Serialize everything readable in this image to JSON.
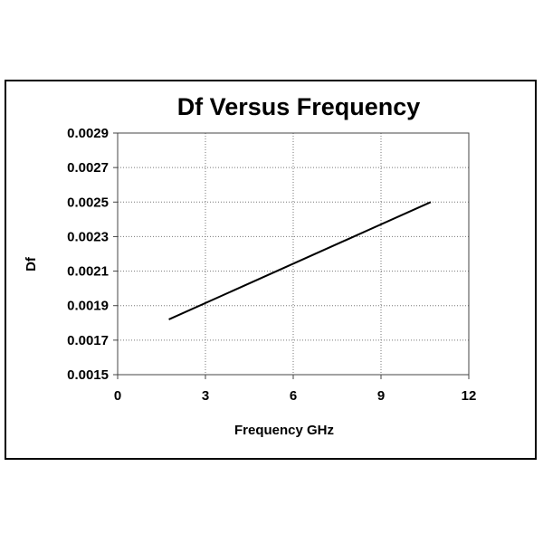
{
  "chart_data": {
    "type": "line",
    "title": "Df Versus Frequency",
    "xlabel": "Frequency GHz",
    "ylabel": "Df",
    "xlim": [
      0,
      12
    ],
    "ylim": [
      0.0015,
      0.0029
    ],
    "x_ticks": [
      "0",
      "3",
      "6",
      "9",
      "12"
    ],
    "x_tick_values": [
      0,
      3,
      6,
      9,
      12
    ],
    "y_ticks": [
      "0.0015",
      "0.0017",
      "0.0019",
      "0.0021",
      "0.0023",
      "0.0025",
      "0.0027",
      "0.0029"
    ],
    "y_tick_values": [
      0.0015,
      0.0017,
      0.0019,
      0.0021,
      0.0023,
      0.0025,
      0.0027,
      0.0029
    ],
    "grid": true,
    "legend": "none",
    "line_color": "#000000",
    "series": [
      {
        "x": [
          1.75,
          10.7
        ],
        "y": [
          0.00182,
          0.0025
        ]
      }
    ]
  }
}
